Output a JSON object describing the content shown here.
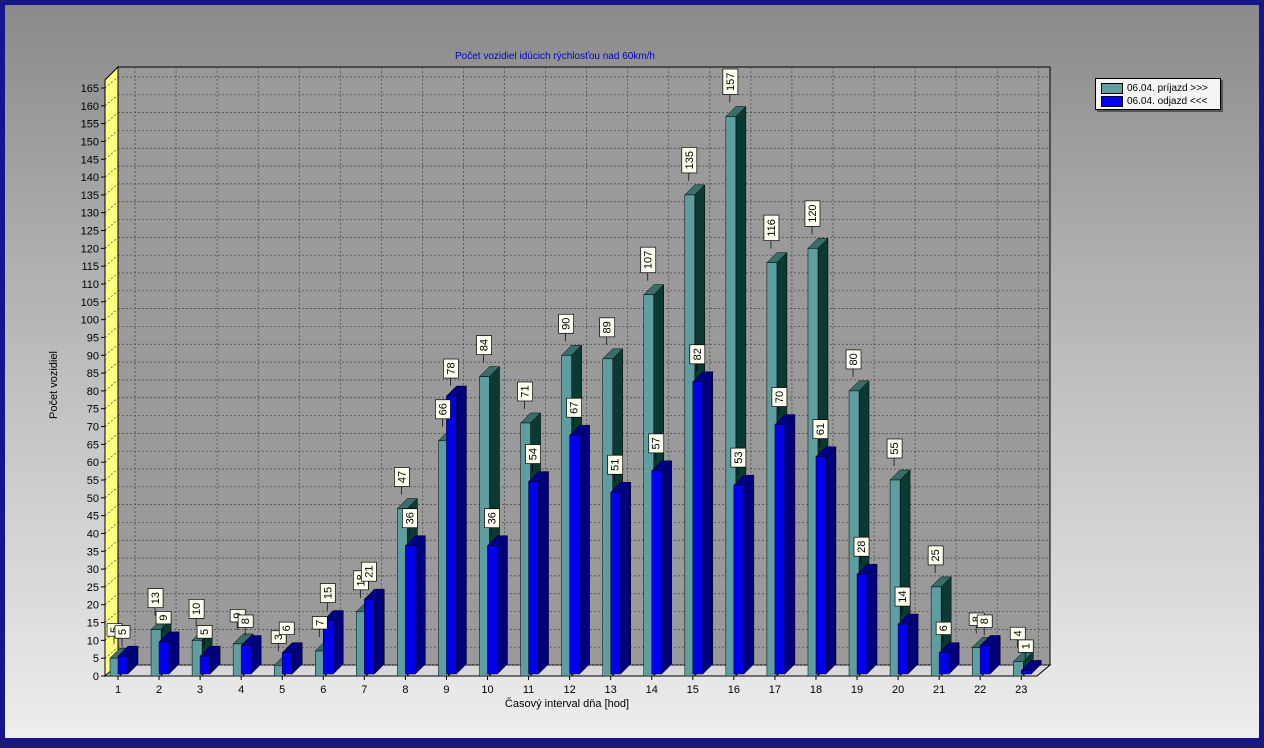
{
  "window": {
    "title": "Počet vozidiel idúcich rýchlosťou nad 60km/h"
  },
  "legend": {
    "items": [
      {
        "label": "06.04.  príjazd >>>",
        "color": "#5f9ea0"
      },
      {
        "label": "06.04.  odjazd <<<",
        "color": "#0000ee"
      }
    ]
  },
  "colors": {
    "series1_front": "#5f9ea0",
    "series1_top": "#3a6e6a",
    "series1_side": "#0a3a32",
    "series2_front": "#0000ee",
    "series2_top": "#000088",
    "series2_side": "#00007a",
    "yaxis_wall": "#ffff80",
    "title": "#0000cc"
  },
  "chart_data": {
    "type": "bar",
    "title": "Počet vozidiel idúcich rýchlosťou nad 60km/h",
    "xlabel": "Časový interval dňa [hod]",
    "ylabel": "Počet vozidiel",
    "ylim": [
      0,
      165
    ],
    "ytick_step": 5,
    "grid": true,
    "legend_position": "top-right",
    "categories": [
      "1",
      "2",
      "3",
      "4",
      "5",
      "6",
      "7",
      "8",
      "9",
      "10",
      "11",
      "12",
      "13",
      "14",
      "15",
      "16",
      "17",
      "18",
      "19",
      "20",
      "21",
      "22",
      "23"
    ],
    "series": [
      {
        "name": "06.04.  príjazd >>>",
        "values": [
          5,
          13,
          10,
          9,
          3,
          7,
          18,
          47,
          66,
          84,
          71,
          90,
          89,
          107,
          135,
          157,
          116,
          120,
          80,
          55,
          25,
          8,
          4
        ]
      },
      {
        "name": "06.04.  odjazd <<<",
        "values": [
          5,
          9,
          5,
          8,
          6,
          15,
          21,
          36,
          78,
          36,
          54,
          67,
          51,
          57,
          82,
          53,
          70,
          61,
          28,
          14,
          6,
          8,
          1
        ]
      }
    ]
  }
}
